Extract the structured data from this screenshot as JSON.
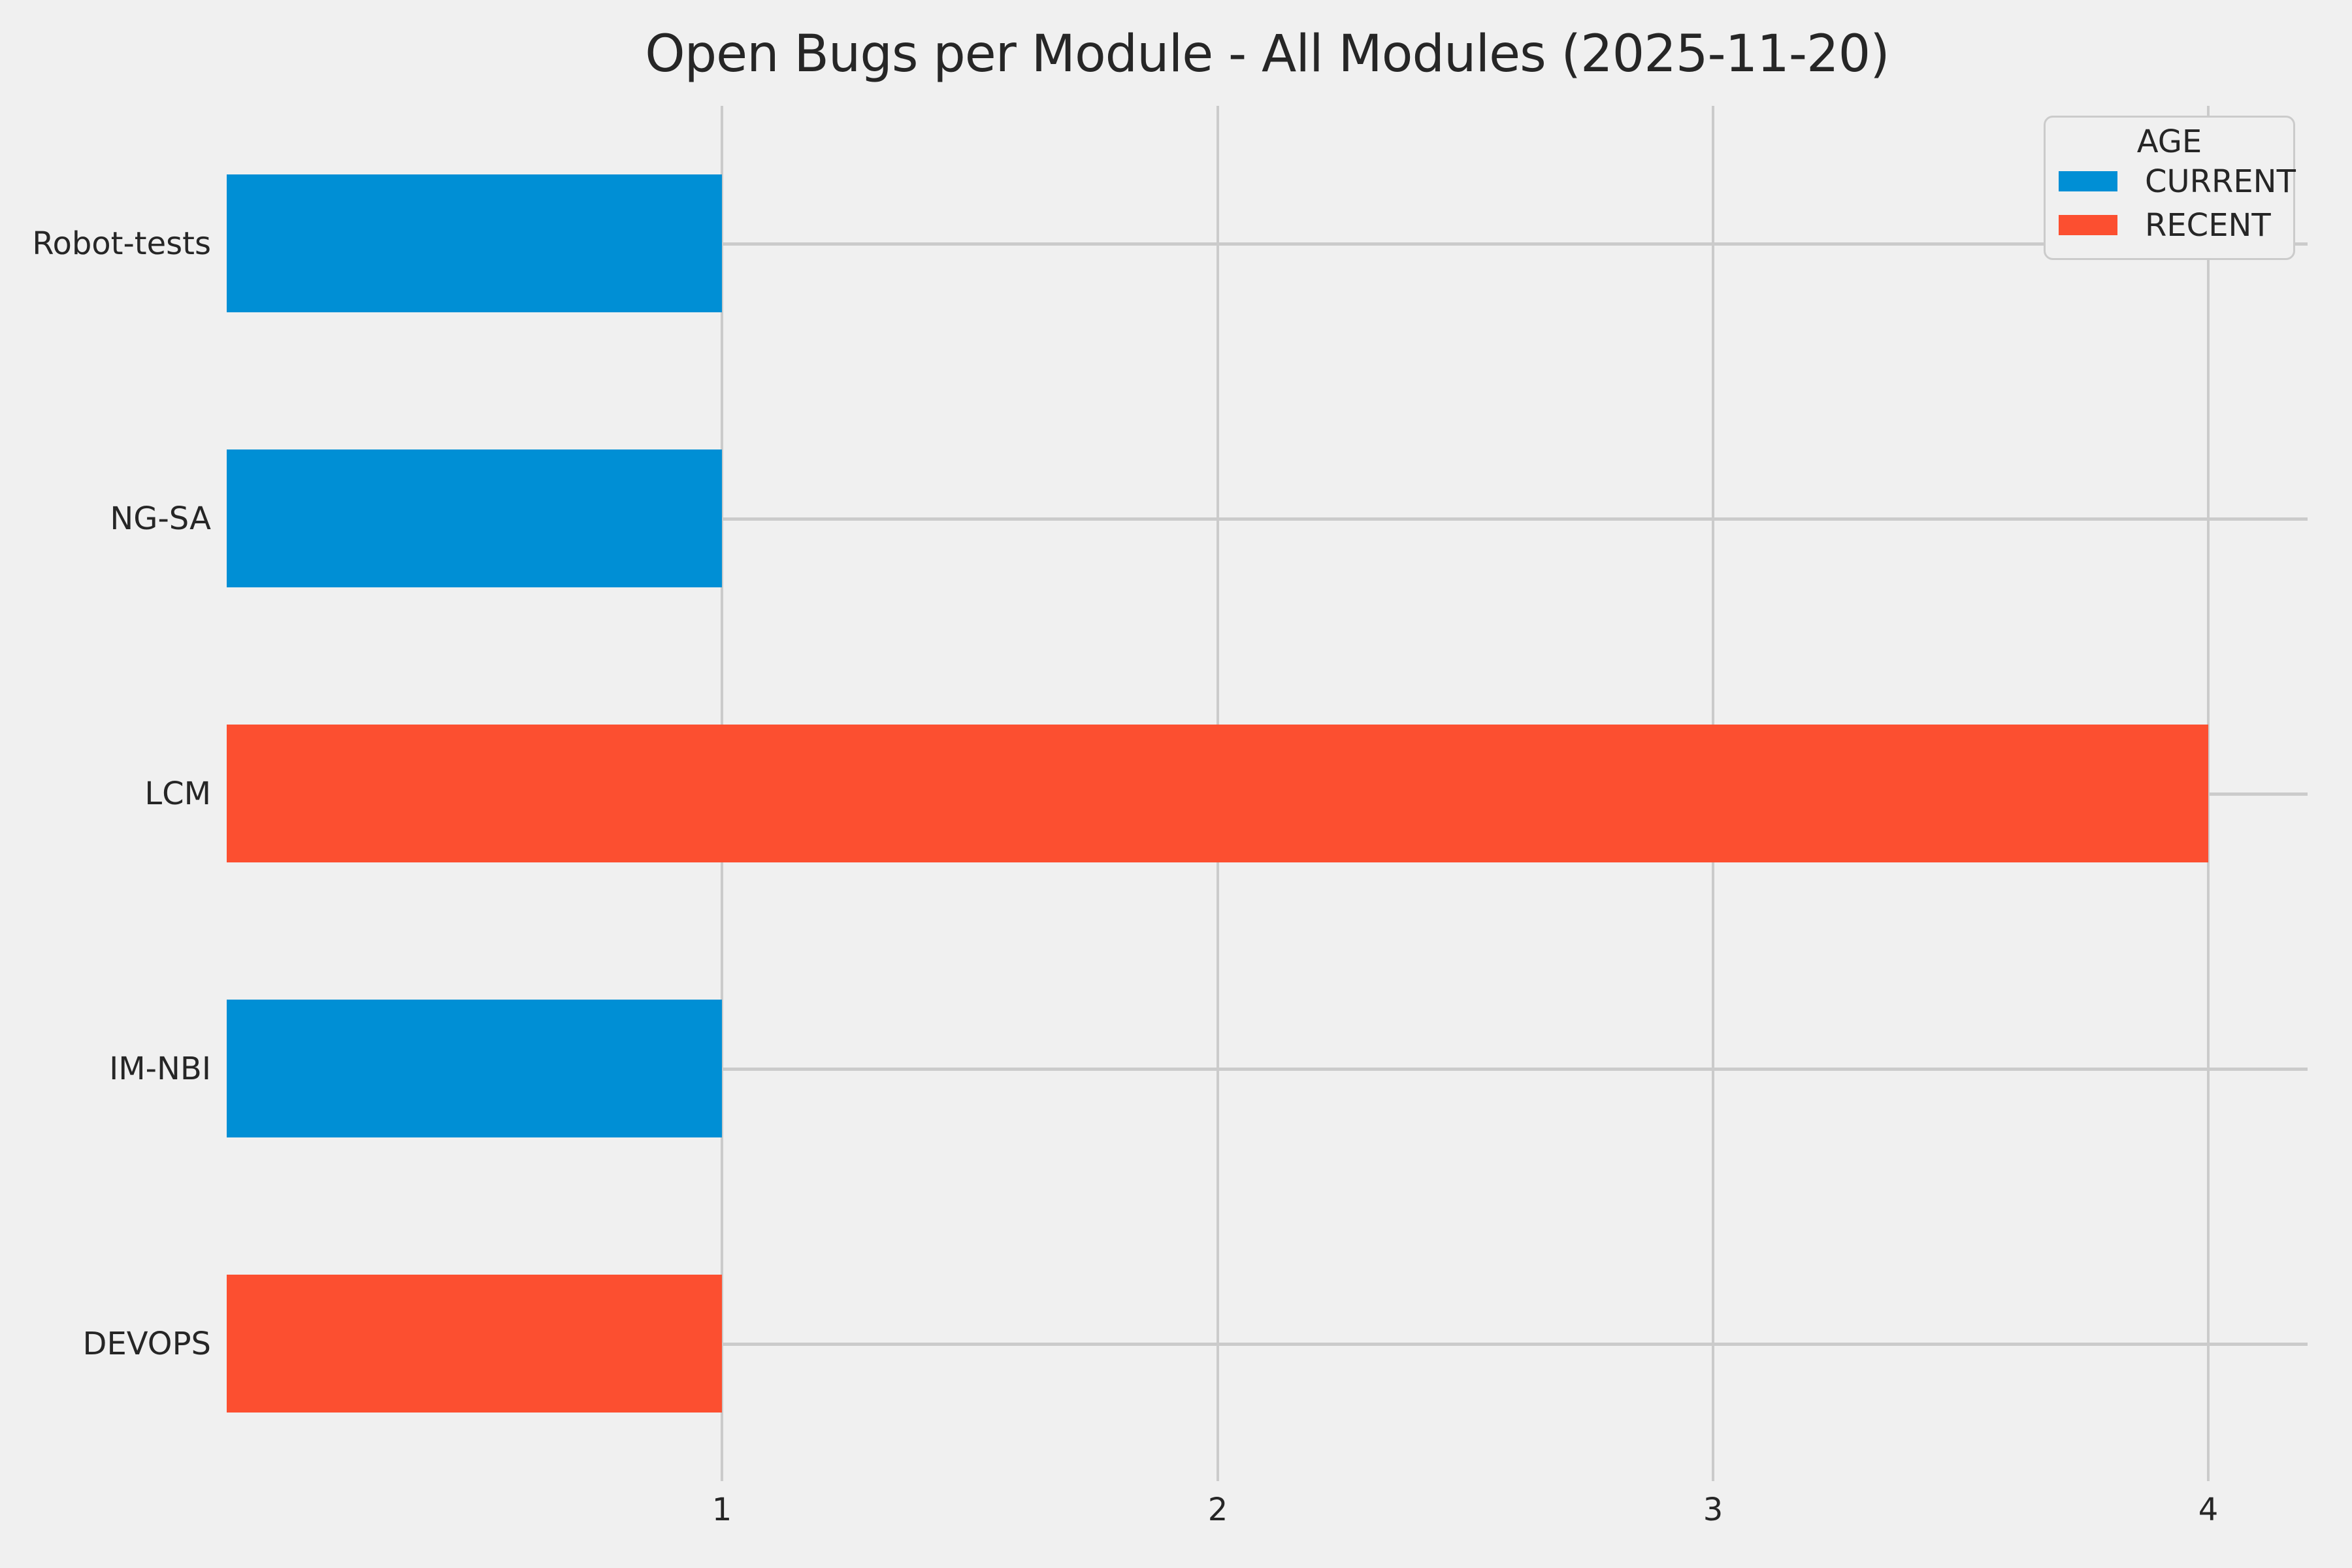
{
  "title": "Open Bugs per Module - All Modules (2025-11-20)",
  "colors": {
    "background": "#f0f0f0",
    "grid": "#cbcbcb",
    "text": "#262626",
    "current": "#008fd5",
    "recent": "#fc4f30"
  },
  "chart_data": {
    "type": "bar",
    "orientation": "horizontal",
    "title": "Open Bugs per Module - All Modules (2025-11-20)",
    "categories": [
      "Robot-tests",
      "NG-SA",
      "LCM",
      "IM-NBI",
      "DEVOPS"
    ],
    "values": [
      1,
      1,
      4,
      1,
      1
    ],
    "bar_series": [
      "CURRENT",
      "CURRENT",
      "RECENT",
      "CURRENT",
      "RECENT"
    ],
    "xlabel": "",
    "ylabel": "",
    "xticks": [
      1,
      2,
      3,
      4
    ],
    "xlim": [
      0,
      4.2
    ],
    "grid": "both",
    "legend": {
      "title": "AGE",
      "position": "upper-right",
      "items": [
        {
          "label": "CURRENT",
          "color": "#008fd5"
        },
        {
          "label": "RECENT",
          "color": "#fc4f30"
        }
      ]
    }
  }
}
